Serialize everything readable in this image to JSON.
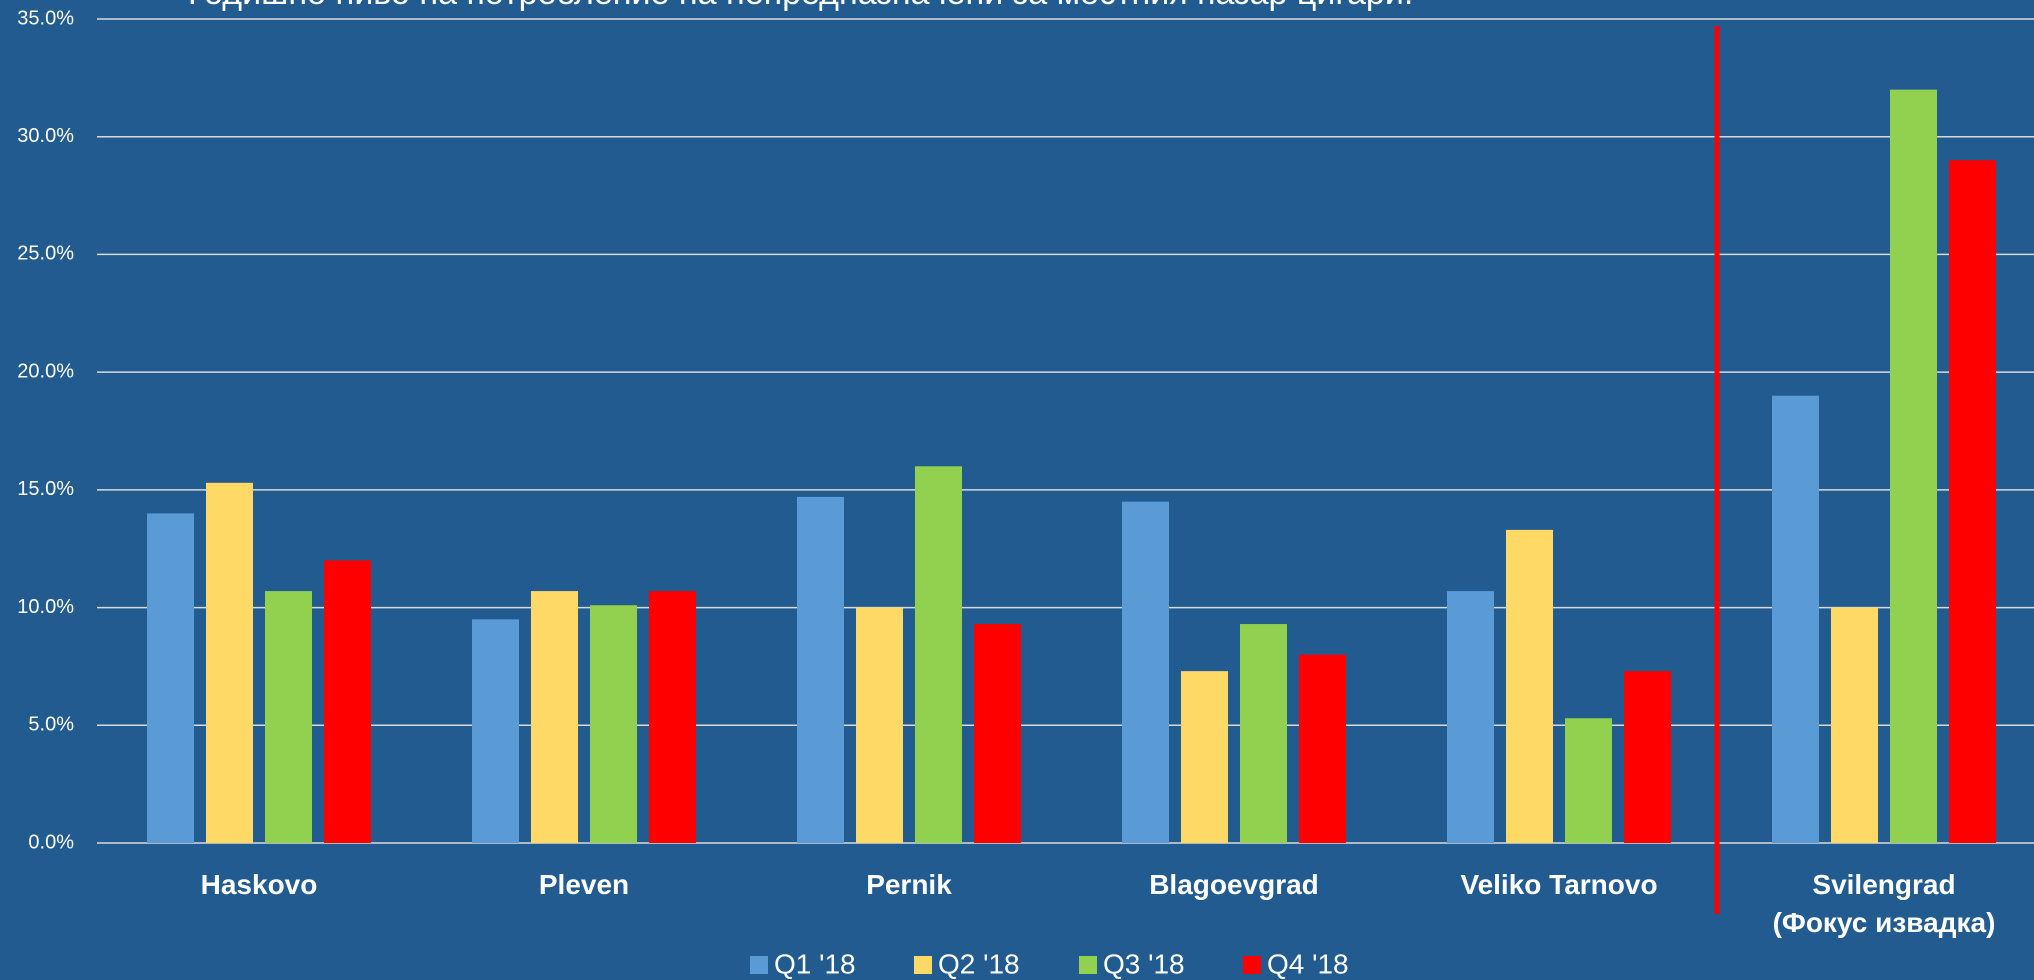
{
  "chart_data": {
    "type": "bar",
    "title": "Годишно ниво на потребление на непредназначени за местния пазар цигари.",
    "categories": [
      "Haskovo",
      "Pleven",
      "Pernik",
      "Blagoevgrad",
      "Veliko Tarnovo",
      "Svilengrad\n(Фокус извадка)"
    ],
    "series": [
      {
        "name": "Q1 '18",
        "color": "#5b9bd5",
        "values": [
          14,
          9.5,
          14.7,
          14.5,
          10.7,
          19
        ]
      },
      {
        "name": "Q2 '18",
        "color": "#ffd966",
        "values": [
          15.3,
          10.7,
          10,
          7.3,
          13.3,
          10
        ]
      },
      {
        "name": "Q3 '18",
        "color": "#92d050",
        "values": [
          10.7,
          10.1,
          16,
          9.3,
          5.3,
          32
        ]
      },
      {
        "name": "Q4 '18",
        "color": "#ff0000",
        "values": [
          12,
          10.7,
          9.3,
          8,
          7.3,
          29
        ]
      }
    ],
    "ylim": [
      0,
      35
    ],
    "yticks": [
      {
        "value": 0,
        "label": "0.0%"
      },
      {
        "value": 5,
        "label": "5.0%"
      },
      {
        "value": 10,
        "label": "10.0%"
      },
      {
        "value": 15,
        "label": "15.0%"
      },
      {
        "value": 20,
        "label": "20.0%"
      },
      {
        "value": 25,
        "label": "25.0%"
      },
      {
        "value": 30,
        "label": "30.0%"
      },
      {
        "value": 35,
        "label": "35.0%"
      }
    ],
    "grid": true,
    "legend": "bottom"
  }
}
